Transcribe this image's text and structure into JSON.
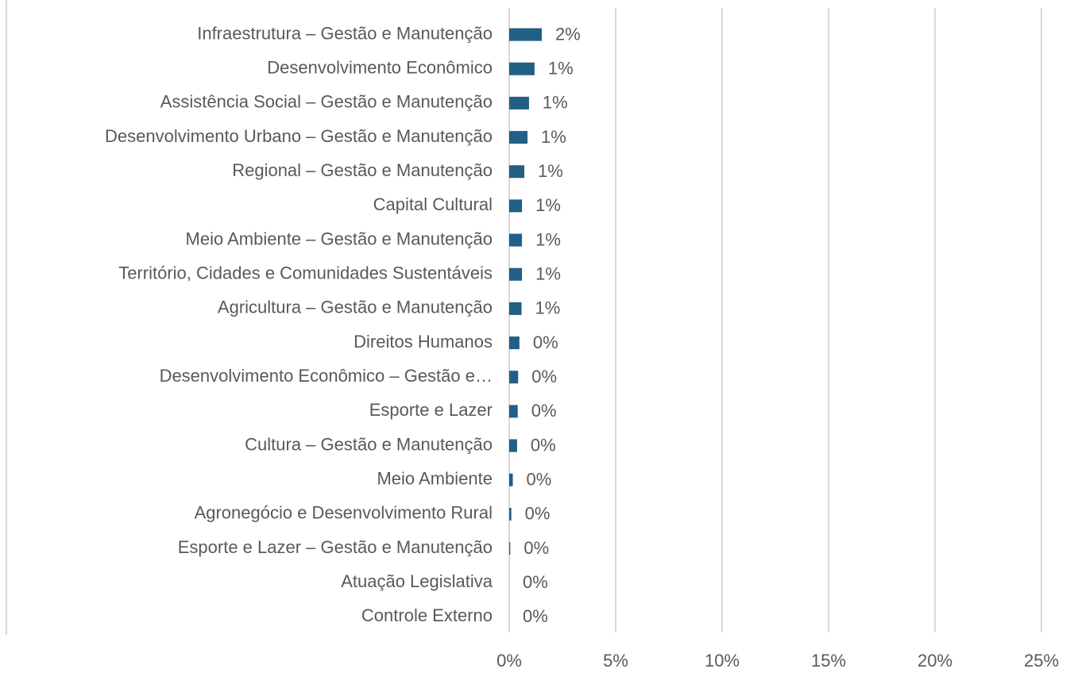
{
  "chart_data": {
    "type": "bar",
    "orientation": "horizontal",
    "categories": [
      "Infraestrutura – Gestão e Manutenção",
      "Desenvolvimento Econômico",
      "Assistência Social – Gestão e Manutenção",
      "Desenvolvimento Urbano – Gestão e Manutenção",
      "Regional – Gestão e Manutenção",
      "Capital Cultural",
      "Meio Ambiente – Gestão e Manutenção",
      "Território, Cidades e Comunidades Sustentáveis",
      "Agricultura – Gestão e Manutenção",
      "Direitos Humanos",
      "Desenvolvimento Econômico – Gestão e…",
      "Esporte e Lazer",
      "Cultura – Gestão e Manutenção",
      "Meio Ambiente",
      "Agronegócio e Desenvolvimento Rural",
      "Esporte e Lazer – Gestão e Manutenção",
      "Atuação Legislativa",
      "Controle Externo"
    ],
    "values": [
      1.53,
      1.19,
      0.93,
      0.86,
      0.71,
      0.6,
      0.6,
      0.6,
      0.58,
      0.48,
      0.42,
      0.4,
      0.37,
      0.17,
      0.1,
      0.05,
      0,
      0
    ],
    "value_labels": [
      "2%",
      "1%",
      "1%",
      "1%",
      "1%",
      "1%",
      "1%",
      "1%",
      "1%",
      "0%",
      "0%",
      "0%",
      "0%",
      "0%",
      "0%",
      "0%",
      "0%",
      "0%"
    ],
    "color": "#215f85",
    "xlim": [
      0,
      25
    ],
    "xticks": [
      {
        "value": 0,
        "label": "0%"
      },
      {
        "value": 5,
        "label": "5%"
      },
      {
        "value": 10,
        "label": "10%"
      },
      {
        "value": 15,
        "label": "15%"
      },
      {
        "value": 20,
        "label": "20%"
      },
      {
        "value": 25,
        "label": "25%"
      }
    ],
    "grid": true
  }
}
